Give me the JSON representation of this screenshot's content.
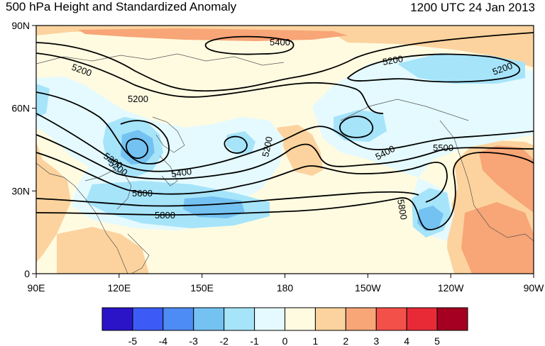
{
  "title": "500 hPa Height and Standardized Anomaly",
  "valid_time": "1200 UTC 24 Jan 2013",
  "y_ticks": [
    {
      "label": "90N",
      "lat": 90
    },
    {
      "label": "60N",
      "lat": 60
    },
    {
      "label": "30N",
      "lat": 30
    },
    {
      "label": "0",
      "lat": 0
    }
  ],
  "x_ticks": [
    {
      "label": "90E",
      "lon": 90
    },
    {
      "label": "120E",
      "lon": 120
    },
    {
      "label": "150E",
      "lon": 150
    },
    {
      "label": "180",
      "lon": 180
    },
    {
      "label": "150W",
      "lon": 210
    },
    {
      "label": "120W",
      "lon": 240
    },
    {
      "label": "90W",
      "lon": 270
    }
  ],
  "contour_labels": [
    "5400",
    "5200",
    "5200",
    "5200",
    "5200",
    "5200",
    "5200",
    "5400",
    "5500",
    "5200",
    "5400",
    "5600",
    "5800",
    "5800"
  ],
  "colorbar": {
    "labels": [
      "-5",
      "-4",
      "-3",
      "-2",
      "-1",
      "0",
      "1",
      "2",
      "3",
      "4",
      "5"
    ],
    "colors": [
      "#2b14c8",
      "#3c5af5",
      "#4e8cf5",
      "#74c2f2",
      "#a6e4fa",
      "#e4fafe",
      "#fffbe1",
      "#fcd39e",
      "#f8a577",
      "#f4504a",
      "#e82a37",
      "#a50021"
    ]
  },
  "anomaly_colors": {
    "neg1": "#e4fafe",
    "neg2": "#a6e4fa",
    "neg3": "#74c2f2",
    "pos1": "#fffbe1",
    "pos2": "#fcd39e",
    "pos3": "#f8a577"
  }
}
